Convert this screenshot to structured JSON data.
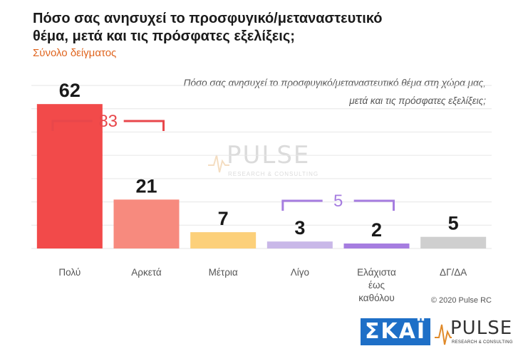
{
  "header": {
    "title_line1": "Πόσο σας ανησυχεί το προσφυγικό/μεταναστευτικό",
    "title_line2": "θέμα, μετά και τις πρόσφατες εξελίξεις;",
    "subtitle": "Σύνολο δείγματος",
    "question_line1": "Πόσο σας ανησυχεί το προσφυγικό/μεταναστευτικό θέμα στη χώρα μας,",
    "question_line2": "μετά και τις πρόσφατες εξελίξεις;"
  },
  "footer": {
    "copyright": "© 2020 Pulse RC",
    "logo_skai": "ΣΚΑΪ",
    "logo_pulse": "PULSE",
    "logo_pulse_sub": "RESEARCH & CONSULTING"
  },
  "watermark": {
    "word": "PULSE",
    "sub": "RESEARCH & CONSULTING"
  },
  "chart_data": {
    "type": "bar",
    "categories": [
      "Πολύ",
      "Αρκετά",
      "Μέτρια",
      "Λίγο",
      "Ελάχιστα\nέως\nκαθόλου",
      "ΔΓ/ΔΑ"
    ],
    "values": [
      62,
      21,
      7,
      3,
      2,
      5
    ],
    "colors": [
      "#f24a4a",
      "#f78a7e",
      "#fcd07a",
      "#c9b8e8",
      "#a67de0",
      "#cfcfcf"
    ],
    "ylim": [
      0,
      70
    ],
    "grid": true,
    "brackets": [
      {
        "label": "83",
        "from": 0,
        "to": 1,
        "color": "#e8474b"
      },
      {
        "label": "5",
        "from": 3,
        "to": 4,
        "color": "#a67de0"
      }
    ]
  }
}
